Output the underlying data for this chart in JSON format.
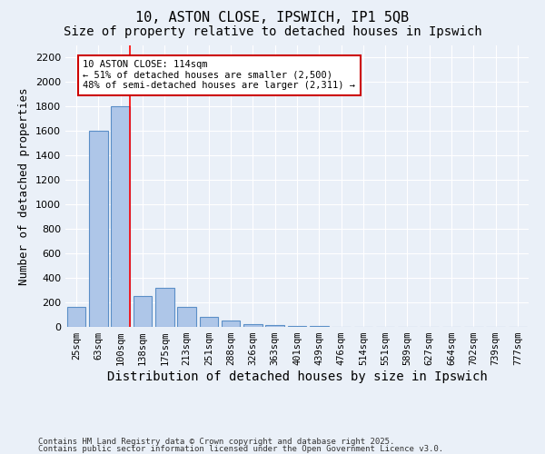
{
  "title1": "10, ASTON CLOSE, IPSWICH, IP1 5QB",
  "title2": "Size of property relative to detached houses in Ipswich",
  "xlabel": "Distribution of detached houses by size in Ipswich",
  "ylabel": "Number of detached properties",
  "categories": [
    "25sqm",
    "63sqm",
    "100sqm",
    "138sqm",
    "175sqm",
    "213sqm",
    "251sqm",
    "288sqm",
    "326sqm",
    "363sqm",
    "401sqm",
    "439sqm",
    "476sqm",
    "514sqm",
    "551sqm",
    "589sqm",
    "627sqm",
    "664sqm",
    "702sqm",
    "739sqm",
    "777sqm"
  ],
  "values": [
    160,
    1600,
    1800,
    250,
    320,
    165,
    85,
    50,
    25,
    15,
    10,
    5,
    2,
    0,
    0,
    0,
    0,
    0,
    0,
    0,
    0
  ],
  "bar_color": "#aec6e8",
  "bar_edge_color": "#5b8fc7",
  "red_line_x": 2.42,
  "annotation_text": "10 ASTON CLOSE: 114sqm\n← 51% of detached houses are smaller (2,500)\n48% of semi-detached houses are larger (2,311) →",
  "annotation_box_color": "#ffffff",
  "annotation_box_edge": "#cc0000",
  "ylim": [
    0,
    2300
  ],
  "ytick_step": 200,
  "background_color": "#eaf0f8",
  "grid_color": "#ffffff",
  "footer1": "Contains HM Land Registry data © Crown copyright and database right 2025.",
  "footer2": "Contains public sector information licensed under the Open Government Licence v3.0.",
  "title_fontsize": 11,
  "subtitle_fontsize": 10,
  "annot_fontsize": 7.5,
  "tick_fontsize": 7.5,
  "ylabel_fontsize": 9,
  "xlabel_fontsize": 10,
  "footer_fontsize": 6.5
}
